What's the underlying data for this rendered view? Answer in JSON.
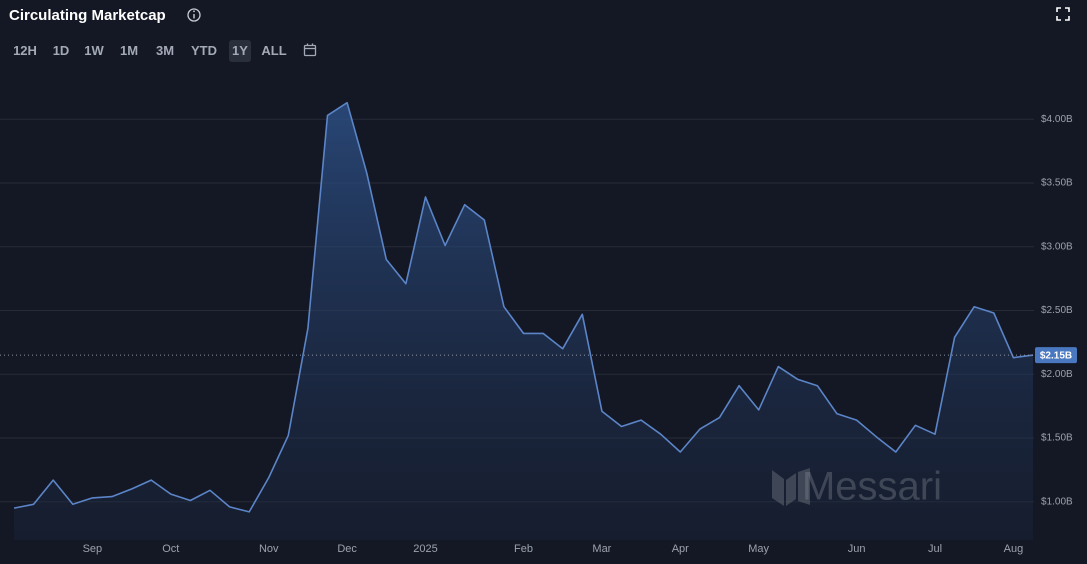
{
  "header": {
    "title": "Circulating Marketcap",
    "ranges": [
      "12H",
      "1D",
      "1W",
      "1M",
      "3M",
      "YTD",
      "1Y",
      "ALL"
    ],
    "selected_range": "1Y"
  },
  "watermark": "Messari",
  "chart_data": {
    "type": "area",
    "categories": [
      null,
      null,
      null,
      null,
      "Sep",
      null,
      null,
      null,
      "Oct",
      null,
      null,
      null,
      null,
      "Nov",
      null,
      null,
      null,
      "Dec",
      null,
      null,
      null,
      "2025",
      null,
      null,
      null,
      null,
      "Feb",
      null,
      null,
      null,
      "Mar",
      null,
      null,
      null,
      "Apr",
      null,
      null,
      null,
      "May",
      null,
      null,
      null,
      null,
      "Jun",
      null,
      null,
      null,
      "Jul",
      null,
      null,
      null,
      "Aug",
      null
    ],
    "values": [
      0.95,
      0.98,
      1.17,
      0.98,
      1.03,
      1.04,
      1.1,
      1.17,
      1.06,
      1.01,
      1.09,
      0.96,
      0.92,
      1.19,
      1.52,
      2.36,
      4.03,
      4.13,
      3.58,
      2.9,
      2.71,
      3.39,
      3.01,
      3.33,
      3.21,
      2.53,
      2.32,
      2.32,
      2.2,
      2.47,
      1.71,
      1.59,
      1.64,
      1.53,
      1.39,
      1.57,
      1.66,
      1.91,
      1.72,
      2.06,
      1.96,
      1.91,
      1.69,
      1.64,
      1.51,
      1.39,
      1.6,
      1.53,
      2.29,
      2.53,
      2.48,
      2.13,
      2.15
    ],
    "color": "#5b85c8",
    "ylim": [
      0.7,
      4.3
    ],
    "yticks": [
      {
        "value": 1,
        "label": "$1.00B"
      },
      {
        "value": 1.5,
        "label": "$1.50B"
      },
      {
        "value": 2,
        "label": "$2.00B"
      },
      {
        "value": 2.5,
        "label": "$2.50B"
      },
      {
        "value": 3,
        "label": "$3.00B"
      },
      {
        "value": 3.5,
        "label": "$3.50B"
      },
      {
        "value": 4,
        "label": "$4.00B"
      }
    ],
    "current_value": {
      "value": 2.15,
      "label": "$2.15B"
    },
    "grid": true
  }
}
